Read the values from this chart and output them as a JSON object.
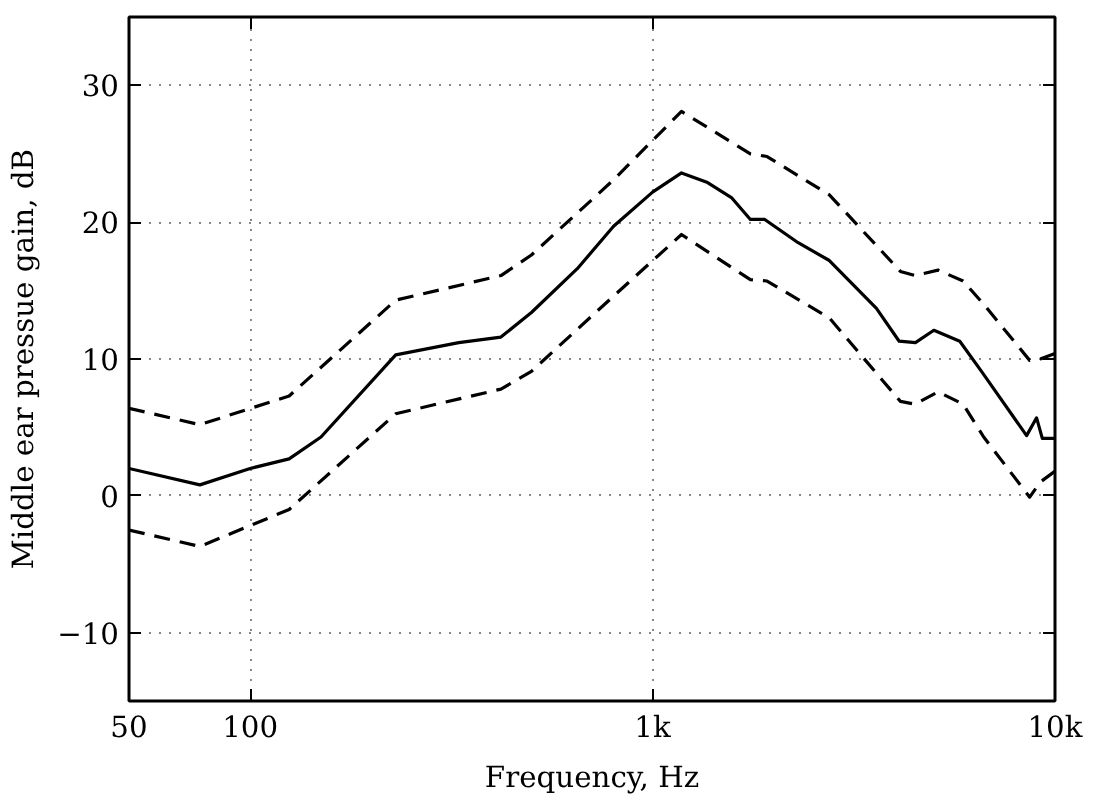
{
  "chart_data": {
    "type": "line",
    "xlabel": "Frequency, Hz",
    "ylabel": "Middle ear pressue gain, dB",
    "log": "x",
    "xlim": [
      50,
      10000
    ],
    "xticks": [
      50,
      100,
      {
        "value": 1000,
        "label": "1k"
      },
      {
        "value": 10000,
        "label": "10k"
      }
    ],
    "ylim": [
      -15,
      35
    ],
    "yticks": [
      {
        "value": -10,
        "label": "−10"
      },
      0,
      10,
      20,
      30
    ],
    "grid": true,
    "marker": "none",
    "series": [
      {
        "color": "#000000",
        "line_style": "solid",
        "x": [
          50,
          75,
          100,
          125,
          150,
          230,
          330,
          420,
          500,
          650,
          800,
          1000,
          1180,
          1370,
          1570,
          1750,
          1900,
          2300,
          2750,
          3600,
          4100,
          4500,
          5000,
          5800,
          6600,
          8500,
          9000,
          9300,
          10000
        ],
        "values": [
          2.0,
          0.8,
          2.0,
          2.7,
          4.3,
          10.3,
          11.2,
          11.6,
          13.4,
          16.6,
          19.7,
          22.2,
          23.6,
          22.9,
          21.8,
          20.2,
          20.2,
          18.5,
          17.2,
          13.7,
          11.3,
          11.2,
          12.1,
          11.3,
          9.0,
          4.4,
          5.7,
          4.2,
          4.2
        ]
      },
      {
        "color": "#000000",
        "line_style": "dashed",
        "x": [
          50,
          75,
          125,
          230,
          420,
          500,
          800,
          1180,
          1750,
          1925,
          2750,
          4130,
          4490,
          5120,
          5910,
          6650,
          8650,
          9190,
          10000
        ],
        "values": [
          6.4,
          5.2,
          7.3,
          14.3,
          16.1,
          17.6,
          23.1,
          28.1,
          25.0,
          24.8,
          22.0,
          16.4,
          16.1,
          16.5,
          15.7,
          14.0,
          9.9,
          10.0,
          10.4
        ]
      },
      {
        "color": "#000000",
        "line_style": "dashed",
        "x": [
          50,
          75,
          125,
          230,
          420,
          500,
          800,
          1180,
          1750,
          1925,
          2750,
          4130,
          4490,
          5120,
          5910,
          6650,
          8650,
          9190,
          10000
        ],
        "values": [
          -2.5,
          -3.7,
          -1.0,
          6.0,
          7.8,
          9.1,
          14.6,
          19.1,
          15.8,
          15.7,
          13.0,
          6.9,
          6.7,
          7.6,
          6.7,
          4.3,
          -0.1,
          1.0,
          1.8
        ]
      }
    ]
  }
}
